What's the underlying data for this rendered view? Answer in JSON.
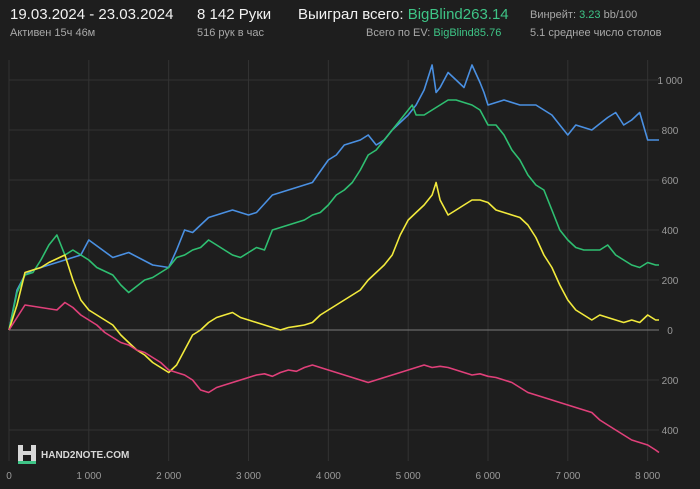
{
  "header": {
    "date_range": "19.03.2024 - 23.03.2024",
    "active": "Активен 15ч 46м",
    "hands": "8 142 Руки",
    "hands_per_hour": "516 рук в час",
    "won_label": "Выиграл всего:",
    "won_value": "BigBlind263.14",
    "ev_label": "Всего по EV:",
    "ev_value": "BigBlind85.76",
    "winrate_label": "Винрейт:",
    "winrate_value": "3.23",
    "winrate_suffix": "bb/100",
    "tables": "5.1 среднее число столов"
  },
  "logo": {
    "text": "HAND2NOTE.COM"
  },
  "colors": {
    "background": "#1e1e1e",
    "grid": "#333333",
    "zero": "#7a7a7a",
    "blue": "#4a90e2",
    "green": "#2fbf71",
    "yellow": "#f2ea3c",
    "red": "#e0407a"
  },
  "chart_data": {
    "type": "line",
    "x_ticks": [
      0,
      1000,
      2000,
      3000,
      4000,
      5000,
      6000,
      7000,
      8000
    ],
    "x_tick_labels": [
      "0",
      "1 000",
      "2 000",
      "3 000",
      "4 000",
      "5 000",
      "6 000",
      "7 000",
      "8 000"
    ],
    "y_ticks": [
      -400,
      -200,
      0,
      200,
      400,
      600,
      800,
      1000
    ],
    "y_tick_labels": [
      "400",
      "200",
      "0",
      "200",
      "400",
      "600",
      "800",
      "1 000"
    ],
    "xlim": [
      0,
      8142
    ],
    "ylim": [
      -500,
      1080
    ],
    "series": [
      {
        "color": "blue",
        "x": [
          0,
          100,
          200,
          300,
          600,
          900,
          1000,
          1300,
          1500,
          1800,
          2000,
          2100,
          2200,
          2300,
          2500,
          2700,
          2800,
          3000,
          3100,
          3300,
          3500,
          3600,
          3800,
          4000,
          4100,
          4200,
          4400,
          4500,
          4600,
          4700,
          4800,
          4900,
          5000,
          5100,
          5200,
          5300,
          5350,
          5400,
          5500,
          5600,
          5700,
          5800,
          5900,
          5950,
          6000,
          6200,
          6400,
          6600,
          6700,
          6800,
          6900,
          7000,
          7100,
          7300,
          7500,
          7600,
          7700,
          7800,
          7900,
          8000,
          8142
        ],
        "y": [
          0,
          160,
          220,
          240,
          270,
          300,
          360,
          290,
          310,
          260,
          250,
          320,
          400,
          390,
          450,
          470,
          480,
          460,
          470,
          540,
          560,
          570,
          590,
          680,
          700,
          740,
          760,
          780,
          740,
          760,
          800,
          830,
          860,
          900,
          960,
          1060,
          950,
          970,
          1030,
          1000,
          970,
          1060,
          990,
          950,
          900,
          920,
          900,
          900,
          880,
          860,
          820,
          780,
          820,
          800,
          850,
          870,
          820,
          840,
          870,
          760,
          760
        ]
      },
      {
        "color": "green",
        "x": [
          0,
          100,
          200,
          300,
          400,
          500,
          600,
          700,
          800,
          1000,
          1100,
          1300,
          1400,
          1500,
          1700,
          1800,
          1900,
          2000,
          2100,
          2200,
          2300,
          2400,
          2500,
          2600,
          2700,
          2800,
          2900,
          3000,
          3100,
          3200,
          3300,
          3400,
          3500,
          3600,
          3700,
          3800,
          3900,
          4000,
          4100,
          4200,
          4300,
          4400,
          4500,
          4600,
          4700,
          4800,
          4900,
          5000,
          5050,
          5100,
          5200,
          5300,
          5400,
          5500,
          5600,
          5700,
          5800,
          5900,
          6000,
          6100,
          6200,
          6300,
          6400,
          6500,
          6600,
          6700,
          6800,
          6900,
          7000,
          7100,
          7200,
          7300,
          7400,
          7500,
          7600,
          7700,
          7800,
          7900,
          8000,
          8100,
          8142
        ],
        "y": [
          0,
          150,
          220,
          230,
          280,
          340,
          380,
          300,
          320,
          280,
          250,
          220,
          180,
          150,
          200,
          210,
          230,
          250,
          290,
          300,
          320,
          330,
          360,
          340,
          320,
          300,
          290,
          310,
          330,
          320,
          400,
          410,
          420,
          430,
          440,
          460,
          470,
          500,
          540,
          560,
          590,
          640,
          700,
          720,
          760,
          800,
          840,
          880,
          900,
          860,
          860,
          880,
          900,
          920,
          920,
          910,
          900,
          880,
          820,
          820,
          780,
          720,
          680,
          620,
          580,
          560,
          480,
          400,
          360,
          330,
          320,
          320,
          320,
          340,
          300,
          280,
          260,
          250,
          270,
          260,
          260
        ]
      },
      {
        "color": "yellow",
        "x": [
          0,
          100,
          200,
          300,
          400,
          500,
          700,
          800,
          900,
          1000,
          1100,
          1200,
          1300,
          1400,
          1500,
          1600,
          1700,
          1800,
          1900,
          2000,
          2100,
          2200,
          2300,
          2400,
          2500,
          2600,
          2700,
          2800,
          2900,
          3000,
          3100,
          3200,
          3300,
          3400,
          3500,
          3600,
          3700,
          3800,
          3900,
          4000,
          4100,
          4200,
          4300,
          4400,
          4500,
          4600,
          4700,
          4800,
          4900,
          5000,
          5100,
          5200,
          5300,
          5350,
          5400,
          5500,
          5600,
          5700,
          5800,
          5900,
          6000,
          6100,
          6200,
          6300,
          6400,
          6500,
          6600,
          6700,
          6800,
          6900,
          7000,
          7100,
          7200,
          7300,
          7400,
          7500,
          7600,
          7700,
          7800,
          7900,
          8000,
          8100,
          8142
        ],
        "y": [
          0,
          100,
          230,
          240,
          250,
          270,
          300,
          200,
          120,
          80,
          60,
          40,
          20,
          -20,
          -50,
          -80,
          -100,
          -130,
          -150,
          -170,
          -140,
          -80,
          -20,
          0,
          30,
          50,
          60,
          70,
          50,
          40,
          30,
          20,
          10,
          0,
          10,
          15,
          20,
          30,
          60,
          80,
          100,
          120,
          140,
          160,
          200,
          230,
          260,
          300,
          380,
          440,
          470,
          500,
          540,
          590,
          520,
          460,
          480,
          500,
          520,
          520,
          510,
          480,
          470,
          460,
          450,
          420,
          370,
          300,
          250,
          180,
          120,
          80,
          60,
          40,
          60,
          50,
          40,
          30,
          40,
          30,
          60,
          40,
          40
        ]
      },
      {
        "color": "red",
        "x": [
          0,
          200,
          400,
          600,
          700,
          800,
          900,
          1000,
          1100,
          1200,
          1300,
          1400,
          1500,
          1600,
          1700,
          1800,
          1900,
          2000,
          2100,
          2200,
          2300,
          2400,
          2500,
          2600,
          2700,
          2800,
          2900,
          3000,
          3100,
          3200,
          3300,
          3400,
          3500,
          3600,
          3700,
          3800,
          3900,
          4000,
          4100,
          4200,
          4300,
          4400,
          4500,
          4600,
          4700,
          4800,
          4900,
          5000,
          5100,
          5200,
          5300,
          5400,
          5500,
          5600,
          5700,
          5800,
          5900,
          6000,
          6100,
          6200,
          6300,
          6400,
          6500,
          6600,
          6700,
          6800,
          6900,
          7000,
          7100,
          7200,
          7300,
          7400,
          7500,
          7600,
          7700,
          7800,
          7900,
          8000,
          8100,
          8142
        ],
        "y": [
          0,
          100,
          90,
          80,
          110,
          90,
          60,
          40,
          20,
          -10,
          -30,
          -50,
          -60,
          -80,
          -90,
          -110,
          -130,
          -160,
          -170,
          -180,
          -200,
          -240,
          -250,
          -230,
          -220,
          -210,
          -200,
          -190,
          -180,
          -175,
          -185,
          -170,
          -160,
          -165,
          -150,
          -140,
          -150,
          -160,
          -170,
          -180,
          -190,
          -200,
          -210,
          -200,
          -190,
          -180,
          -170,
          -160,
          -150,
          -140,
          -150,
          -145,
          -150,
          -160,
          -170,
          -180,
          -175,
          -185,
          -190,
          -200,
          -210,
          -230,
          -250,
          -260,
          -270,
          -280,
          -290,
          -300,
          -310,
          -320,
          -330,
          -360,
          -380,
          -400,
          -420,
          -440,
          -450,
          -460,
          -480,
          -490
        ]
      }
    ]
  }
}
